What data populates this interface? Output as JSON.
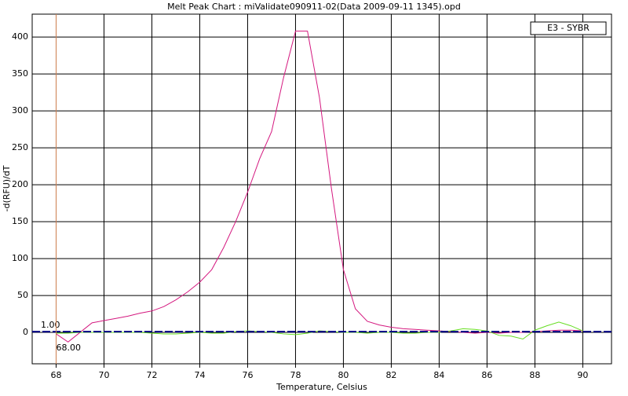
{
  "chart_data": {
    "type": "line",
    "title": "Melt Peak Chart : miValidate090911-02(Data 2009-09-11 1345).opd",
    "xlabel": "Temperature, Celsius",
    "ylabel": "-d(RFU)/dT",
    "x": [
      68,
      68.5,
      69,
      69.5,
      70,
      70.5,
      71,
      71.5,
      72,
      72.5,
      73,
      73.5,
      74,
      74.5,
      75,
      75.5,
      76,
      76.5,
      77,
      77.5,
      78,
      78.5,
      79,
      79.5,
      80,
      80.5,
      81,
      81.5,
      82,
      82.5,
      83,
      83.5,
      84,
      84.5,
      85,
      85.5,
      86,
      86.5,
      87,
      87.5,
      88,
      88.5,
      89,
      89.5,
      90
    ],
    "series": [
      {
        "name": "E3 - SYBR",
        "color": "#d4187f",
        "values": [
          -2,
          -13,
          0,
          13,
          16,
          19,
          22,
          26,
          29,
          35,
          44,
          55,
          68,
          85,
          115,
          150,
          190,
          235,
          272,
          345,
          408,
          408,
          318,
          195,
          85,
          32,
          15,
          10,
          7,
          5,
          4,
          3,
          2,
          1,
          0,
          -1,
          0,
          -1,
          0,
          0,
          1,
          2,
          3,
          3,
          2
        ]
      },
      {
        "color": "#66dd22",
        "values": [
          -1,
          -1,
          0,
          0,
          0,
          0,
          0,
          0,
          -1,
          -2,
          -2,
          -1,
          0,
          -1,
          -1,
          1,
          2,
          1,
          0,
          -2,
          -3,
          -1,
          2,
          1,
          0,
          0,
          -1,
          0,
          0,
          -1,
          -1,
          0,
          0,
          2,
          5,
          4,
          2,
          -4,
          -5,
          -9,
          3,
          9,
          14,
          9,
          2
        ]
      }
    ],
    "threshold": {
      "value": 1,
      "label": "1.00",
      "color": "#000080"
    },
    "start_line": {
      "value": 68,
      "label": "68.00",
      "color": "#d08050"
    },
    "xlim": [
      67,
      91.2
    ],
    "xticks": [
      68,
      70,
      72,
      74,
      76,
      78,
      80,
      82,
      84,
      86,
      88,
      90
    ],
    "ylim": [
      -42.5,
      431
    ],
    "yticks": [
      0,
      50,
      100,
      150,
      200,
      250,
      300,
      350,
      400
    ],
    "grid": true,
    "legend": "upper right"
  }
}
